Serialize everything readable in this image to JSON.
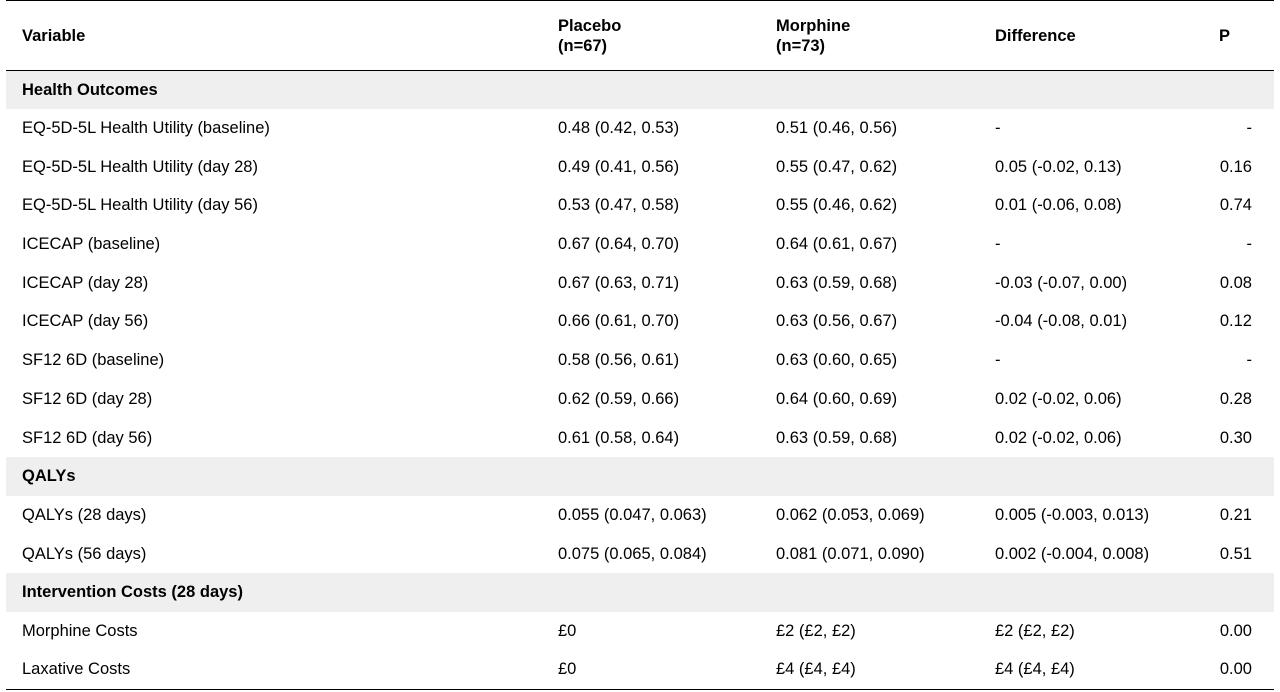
{
  "columns": {
    "variable": "Variable",
    "placebo_line1": "Placebo",
    "placebo_line2": "(n=67)",
    "morphine_line1": "Morphine",
    "morphine_line2": "(n=73)",
    "difference": "Difference",
    "p": "P"
  },
  "sections": [
    {
      "title": "Health Outcomes",
      "rows": [
        {
          "variable": "EQ-5D-5L Health Utility (baseline)",
          "placebo": "0.48 (0.42, 0.53)",
          "morphine": "0.51 (0.46, 0.56)",
          "difference": "-",
          "p": "-"
        },
        {
          "variable": "EQ-5D-5L Health Utility (day 28)",
          "placebo": "0.49 (0.41, 0.56)",
          "morphine": "0.55 (0.47, 0.62)",
          "difference": "0.05 (-0.02, 0.13)",
          "p": "0.16"
        },
        {
          "variable": "EQ-5D-5L Health Utility (day 56)",
          "placebo": "0.53 (0.47, 0.58)",
          "morphine": "0.55 (0.46, 0.62)",
          "difference": "0.01 (-0.06, 0.08)",
          "p": "0.74"
        },
        {
          "variable": "ICECAP (baseline)",
          "placebo": "0.67 (0.64, 0.70)",
          "morphine": "0.64 (0.61, 0.67)",
          "difference": "-",
          "p": "-"
        },
        {
          "variable": "ICECAP (day 28)",
          "placebo": "0.67 (0.63, 0.71)",
          "morphine": "0.63 (0.59, 0.68)",
          "difference": "-0.03 (-0.07, 0.00)",
          "p": "0.08"
        },
        {
          "variable": "ICECAP (day 56)",
          "placebo": "0.66 (0.61, 0.70)",
          "morphine": "0.63 (0.56, 0.67)",
          "difference": "-0.04 (-0.08, 0.01)",
          "p": "0.12"
        },
        {
          "variable": "SF12 6D (baseline)",
          "placebo": "0.58 (0.56, 0.61)",
          "morphine": "0.63 (0.60, 0.65)",
          "difference": "-",
          "p": "-"
        },
        {
          "variable": "SF12 6D (day 28)",
          "placebo": "0.62 (0.59, 0.66)",
          "morphine": "0.64 (0.60, 0.69)",
          "difference": "0.02 (-0.02, 0.06)",
          "p": "0.28"
        },
        {
          "variable": "SF12 6D (day 56)",
          "placebo": "0.61 (0.58, 0.64)",
          "morphine": "0.63 (0.59, 0.68)",
          "difference": "0.02 (-0.02, 0.06)",
          "p": "0.30"
        }
      ]
    },
    {
      "title": "QALYs",
      "rows": [
        {
          "variable": "QALYs (28 days)",
          "placebo": "0.055 (0.047, 0.063)",
          "morphine": "0.062 (0.053, 0.069)",
          "difference": "0.005 (-0.003, 0.013)",
          "p": "0.21"
        },
        {
          "variable": "QALYs (56 days)",
          "placebo": "0.075 (0.065, 0.084)",
          "morphine": "0.081 (0.071, 0.090)",
          "difference": "0.002 (-0.004, 0.008)",
          "p": "0.51"
        }
      ]
    },
    {
      "title": "Intervention Costs (28 days)",
      "rows": [
        {
          "variable": "Morphine Costs",
          "placebo": "£0",
          "morphine": "£2 (£2, £2)",
          "difference": "£2 (£2, £2)",
          "p": "0.00"
        },
        {
          "variable": "Laxative Costs",
          "placebo": "£0",
          "morphine": "£4 (£4, £4)",
          "difference": "£4 (£4, £4)",
          "p": "0.00"
        }
      ]
    }
  ]
}
